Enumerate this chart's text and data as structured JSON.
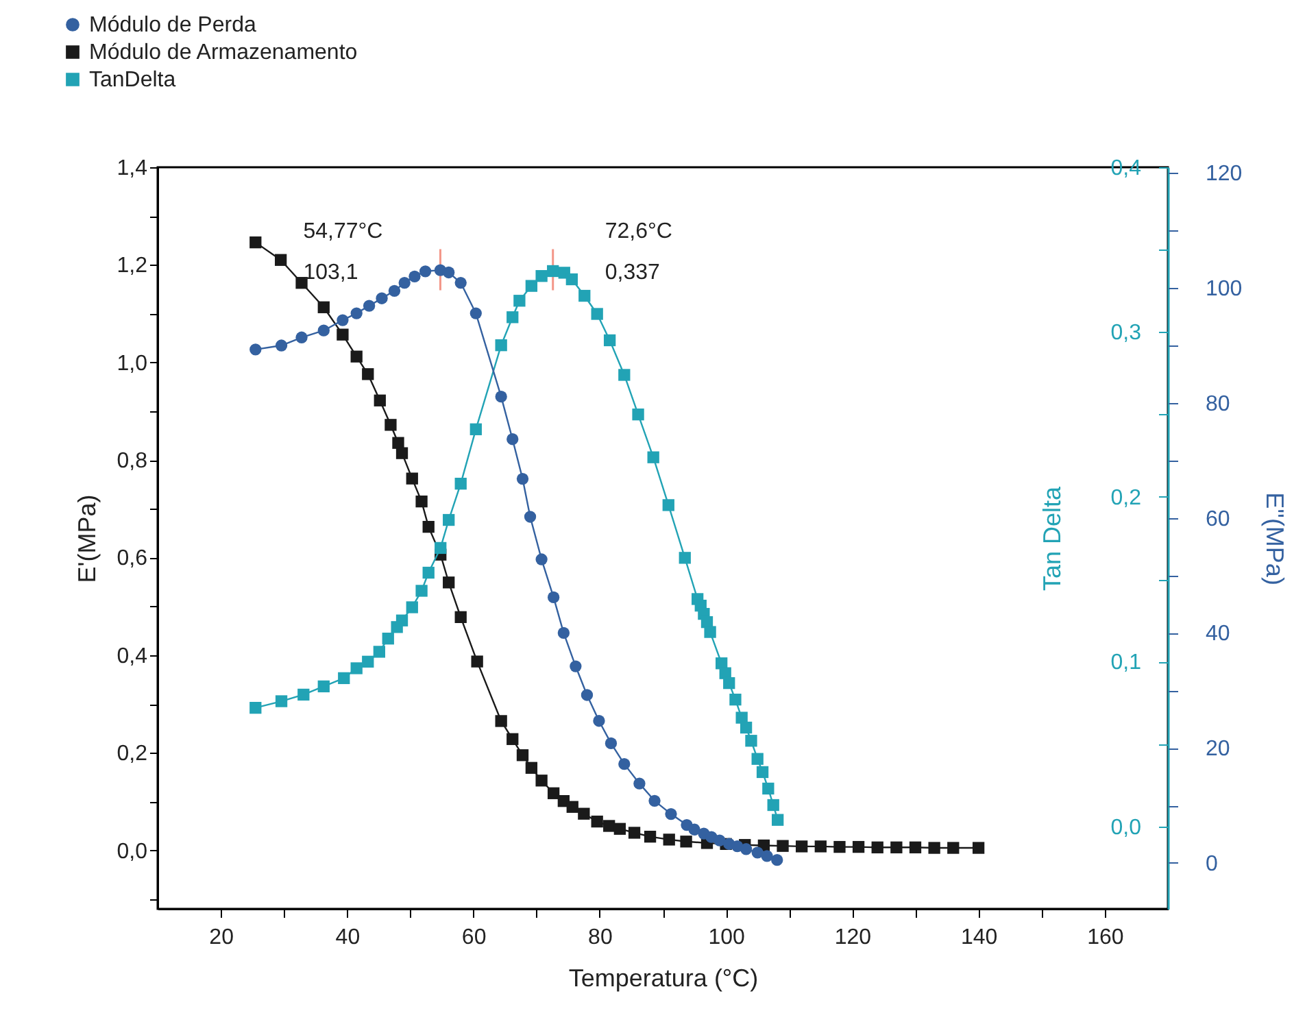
{
  "chart_data": {
    "type": "line",
    "xlabel": "Temperatura (°C)",
    "ylabel": "E'(MPa)",
    "y2label": "Tan Delta",
    "y3label": "E''(MPa)",
    "xlim": [
      10,
      170
    ],
    "xticks": [
      20,
      {
        "value": 30,
        "label": null
      },
      40,
      {
        "value": 50,
        "label": null
      },
      60,
      {
        "value": 70,
        "label": null
      },
      80,
      {
        "value": 90,
        "label": null
      },
      100,
      {
        "value": 110,
        "label": null
      },
      120,
      {
        "value": 130,
        "label": null
      },
      140,
      {
        "value": 150,
        "label": null
      },
      160
    ],
    "ylim": [
      -0.12,
      1.4
    ],
    "yticks": [
      {
        "value": -0.1,
        "label": null
      },
      {
        "value": 0,
        "label": "0,0"
      },
      {
        "value": 0.1,
        "label": null
      },
      {
        "value": 0.2,
        "label": "0,2"
      },
      {
        "value": 0.3,
        "label": null
      },
      {
        "value": 0.4,
        "label": "0,4"
      },
      {
        "value": 0.5,
        "label": null
      },
      {
        "value": 0.6,
        "label": "0,6"
      },
      {
        "value": 0.7,
        "label": null
      },
      {
        "value": 0.8,
        "label": "0,8"
      },
      {
        "value": 0.9,
        "label": null
      },
      {
        "value": 1,
        "label": "1,0"
      },
      {
        "value": 1.1,
        "label": null
      },
      {
        "value": 1.2,
        "label": "1,2"
      },
      {
        "value": 1.3,
        "label": null
      },
      {
        "value": 1.4,
        "label": "1,4"
      }
    ],
    "y2lim": [
      -0.05,
      0.4
    ],
    "y2ticks": [
      {
        "value": 0,
        "label": "0,0"
      },
      {
        "value": 0.05,
        "label": null
      },
      {
        "value": 0.1,
        "label": "0,1"
      },
      {
        "value": 0.15,
        "label": null
      },
      {
        "value": 0.2,
        "label": "0,2"
      },
      {
        "value": 0.25,
        "label": null
      },
      {
        "value": 0.3,
        "label": "0,3"
      },
      {
        "value": 0.35,
        "label": null
      },
      {
        "value": 0.4,
        "label": "0,4"
      }
    ],
    "y3lim": [
      -8,
      121
    ],
    "y3ticks": [
      0,
      {
        "value": 10,
        "label": null
      },
      20,
      {
        "value": 30,
        "label": null
      },
      40,
      {
        "value": 50,
        "label": null
      },
      60,
      {
        "value": 70,
        "label": null
      },
      80,
      {
        "value": 90,
        "label": null
      },
      100,
      {
        "value": 110,
        "label": null
      },
      120
    ],
    "grid": false,
    "legend": "top left",
    "line_style": "solid",
    "series": [
      {
        "name": "Módulo de Perda",
        "color": "#3461a0",
        "axis": "y3",
        "marker": "circle",
        "x": [
          25.5,
          29.6,
          32.8,
          36.3,
          39.3,
          41.5,
          43.5,
          45.5,
          47.5,
          49.1,
          50.7,
          52.4,
          54.77,
          56.1,
          58.0,
          60.4,
          64.4,
          66.2,
          67.8,
          69.0,
          70.8,
          72.7,
          74.3,
          76.2,
          78.0,
          79.9,
          81.8,
          83.9,
          86.3,
          88.7,
          91.3,
          93.8,
          95,
          96.5,
          97.7,
          99,
          100.5,
          101.8,
          103.2,
          105,
          106.5,
          108.1
        ],
        "values": [
          89.3,
          90.0,
          91.4,
          92.6,
          94.4,
          95.6,
          96.9,
          98.2,
          99.5,
          100.9,
          102.0,
          102.9,
          103.1,
          102.7,
          100.9,
          95.6,
          81.1,
          73.7,
          66.8,
          60.2,
          52.8,
          46.2,
          40.0,
          34.2,
          29.2,
          24.7,
          20.8,
          17.2,
          13.8,
          10.8,
          8.5,
          6.6,
          5.8,
          5.1,
          4.5,
          3.9,
          3.3,
          2.9,
          2.4,
          1.8,
          1.2,
          0.5
        ]
      },
      {
        "name": "Módulo de Armazenamento",
        "color": "#1a1a1a",
        "marker": "square",
        "x": [
          25.5,
          29.5,
          32.8,
          36.3,
          39.3,
          41.5,
          43.3,
          45.2,
          46.9,
          48.1,
          48.7,
          50.3,
          51.8,
          52.9,
          54.8,
          56.1,
          58.0,
          60.6,
          64.4,
          66.2,
          67.8,
          69.2,
          70.8,
          72.7,
          74.3,
          75.7,
          77.5,
          79.6,
          81.5,
          83.2,
          85.5,
          88,
          91,
          93.7,
          97,
          100,
          103,
          106,
          109,
          112,
          115,
          118,
          121,
          124,
          127,
          130,
          133,
          136,
          140
        ],
        "values": [
          1.246,
          1.21,
          1.163,
          1.113,
          1.057,
          1.012,
          0.976,
          0.922,
          0.872,
          0.835,
          0.814,
          0.762,
          0.715,
          0.663,
          0.606,
          0.549,
          0.478,
          0.387,
          0.265,
          0.228,
          0.195,
          0.169,
          0.143,
          0.117,
          0.101,
          0.089,
          0.075,
          0.059,
          0.05,
          0.044,
          0.036,
          0.028,
          0.022,
          0.018,
          0.015,
          0.013,
          0.011,
          0.01,
          0.009,
          0.008,
          0.008,
          0.007,
          0.007,
          0.006,
          0.006,
          0.006,
          0.005,
          0.005,
          0.005
        ]
      },
      {
        "name": "TanDelta",
        "color": "#22a3b5",
        "axis": "y2",
        "marker": "square",
        "x": [
          25.5,
          29.6,
          33.1,
          36.3,
          39.5,
          41.5,
          43.3,
          45.1,
          46.5,
          47.9,
          48.7,
          50.3,
          51.8,
          52.9,
          54.8,
          56.1,
          58.0,
          60.4,
          64.4,
          66.2,
          67.3,
          69.2,
          70.8,
          72.6,
          74.4,
          75.6,
          77.6,
          79.6,
          81.6,
          83.9,
          86.1,
          88.5,
          90.9,
          93.5,
          95.5,
          96,
          96.5,
          97,
          97.5,
          99.3,
          99.9,
          100.5,
          101.5,
          102.5,
          103.2,
          104,
          105,
          105.8,
          106.7,
          107.5,
          108.2
        ],
        "values": [
          0.072,
          0.076,
          0.08,
          0.085,
          0.09,
          0.096,
          0.1,
          0.106,
          0.114,
          0.121,
          0.125,
          0.133,
          0.143,
          0.154,
          0.169,
          0.186,
          0.208,
          0.241,
          0.292,
          0.309,
          0.319,
          0.328,
          0.334,
          0.337,
          0.336,
          0.332,
          0.322,
          0.311,
          0.295,
          0.274,
          0.25,
          0.224,
          0.195,
          0.163,
          0.138,
          0.134,
          0.129,
          0.124,
          0.118,
          0.099,
          0.093,
          0.087,
          0.077,
          0.066,
          0.06,
          0.052,
          0.041,
          0.033,
          0.023,
          0.013,
          0.004
        ]
      }
    ],
    "annotations": [
      {
        "text": "54,77°C\n103,1",
        "x": 54.77,
        "y": 1.19
      },
      {
        "text": "72,6°C\n0,337",
        "x": 72.6,
        "y": 1.19
      }
    ]
  }
}
